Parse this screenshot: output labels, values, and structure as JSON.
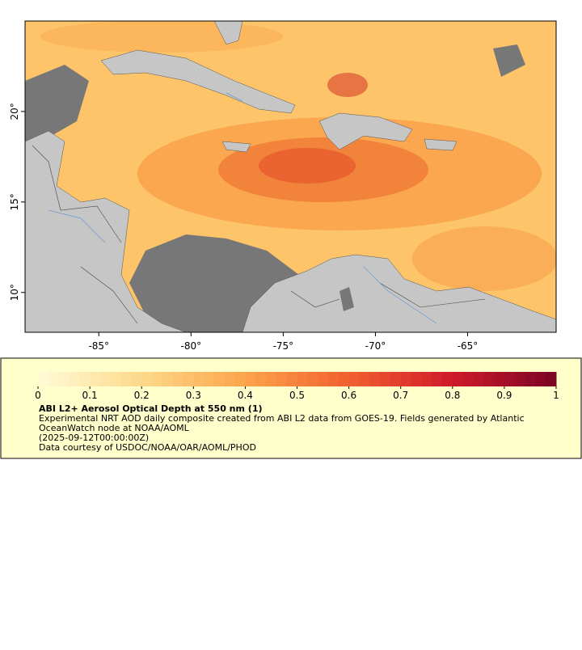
{
  "map": {
    "xlim": [
      -89,
      -60.2
    ],
    "ylim": [
      7.8,
      25
    ],
    "xticks": [
      {
        "value": -85,
        "label": "-85°"
      },
      {
        "value": -80,
        "label": "-80°"
      },
      {
        "value": -75,
        "label": "-75°"
      },
      {
        "value": -70,
        "label": "-70°"
      },
      {
        "value": -65,
        "label": "-65°"
      }
    ],
    "yticks": [
      {
        "value": 10,
        "label": "10°"
      },
      {
        "value": 15,
        "label": "15°"
      },
      {
        "value": 20,
        "label": "20°"
      }
    ]
  },
  "legend": {
    "title": "ABI L2+ Aerosol Optical Depth at 550 nm (1)",
    "description": "Experimental NRT AOD daily composite created from ABI L2 data from GOES-19. Fields generated by Atlantic OceanWatch node at NOAA/AOML",
    "time": "(2025-09-12T00:00:00Z)",
    "credit": "Data courtesy of USDOC/NOAA/OAR/AOML/PHOD",
    "lim": [
      0,
      1
    ],
    "ticks": [
      0,
      0.1,
      0.2,
      0.3,
      0.4,
      0.5,
      0.6,
      0.7,
      0.8,
      0.9,
      1
    ],
    "colors": [
      "#fffbd8",
      "#fdd98a",
      "#fca44a",
      "#f2602f",
      "#cf1a2a",
      "#7a0424"
    ]
  }
}
